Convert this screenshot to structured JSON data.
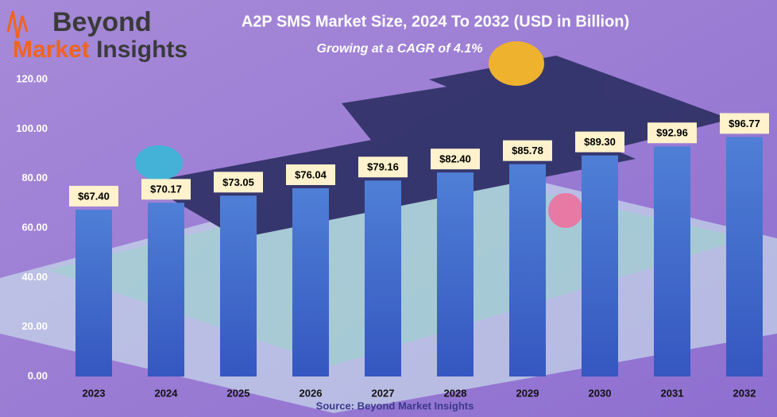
{
  "logo": {
    "top": "Beyond",
    "accent": "Market",
    "rest": "Insights"
  },
  "chart_data": {
    "type": "bar",
    "title": "A2P SMS Market Size, 2024 To 2032 (USD in Billion)",
    "subtitle": "Growing at a CAGR of 4.1%",
    "source": "Source: Beyond Market Insights",
    "categories": [
      "2023",
      "2024",
      "2025",
      "2026",
      "2027",
      "2028",
      "2029",
      "2030",
      "2031",
      "2032"
    ],
    "values": [
      67.4,
      70.17,
      73.05,
      76.04,
      79.16,
      82.4,
      85.78,
      89.3,
      92.96,
      96.77
    ],
    "value_labels": [
      "$67.40",
      "$70.17",
      "$73.05",
      "$76.04",
      "$79.16",
      "$82.40",
      "$85.78",
      "$89.30",
      "$92.96",
      "$96.77"
    ],
    "color": "#4472c4",
    "ylim": [
      0,
      120
    ],
    "yticks": [
      {
        "value": 0,
        "label": "0.00"
      },
      {
        "value": 20,
        "label": "20.00"
      },
      {
        "value": 40,
        "label": "40.00"
      },
      {
        "value": 60,
        "label": "60.00"
      },
      {
        "value": 80,
        "label": "80.00"
      },
      {
        "value": 100,
        "label": "100.00"
      },
      {
        "value": 120,
        "label": "120.00"
      }
    ],
    "grid": false
  }
}
